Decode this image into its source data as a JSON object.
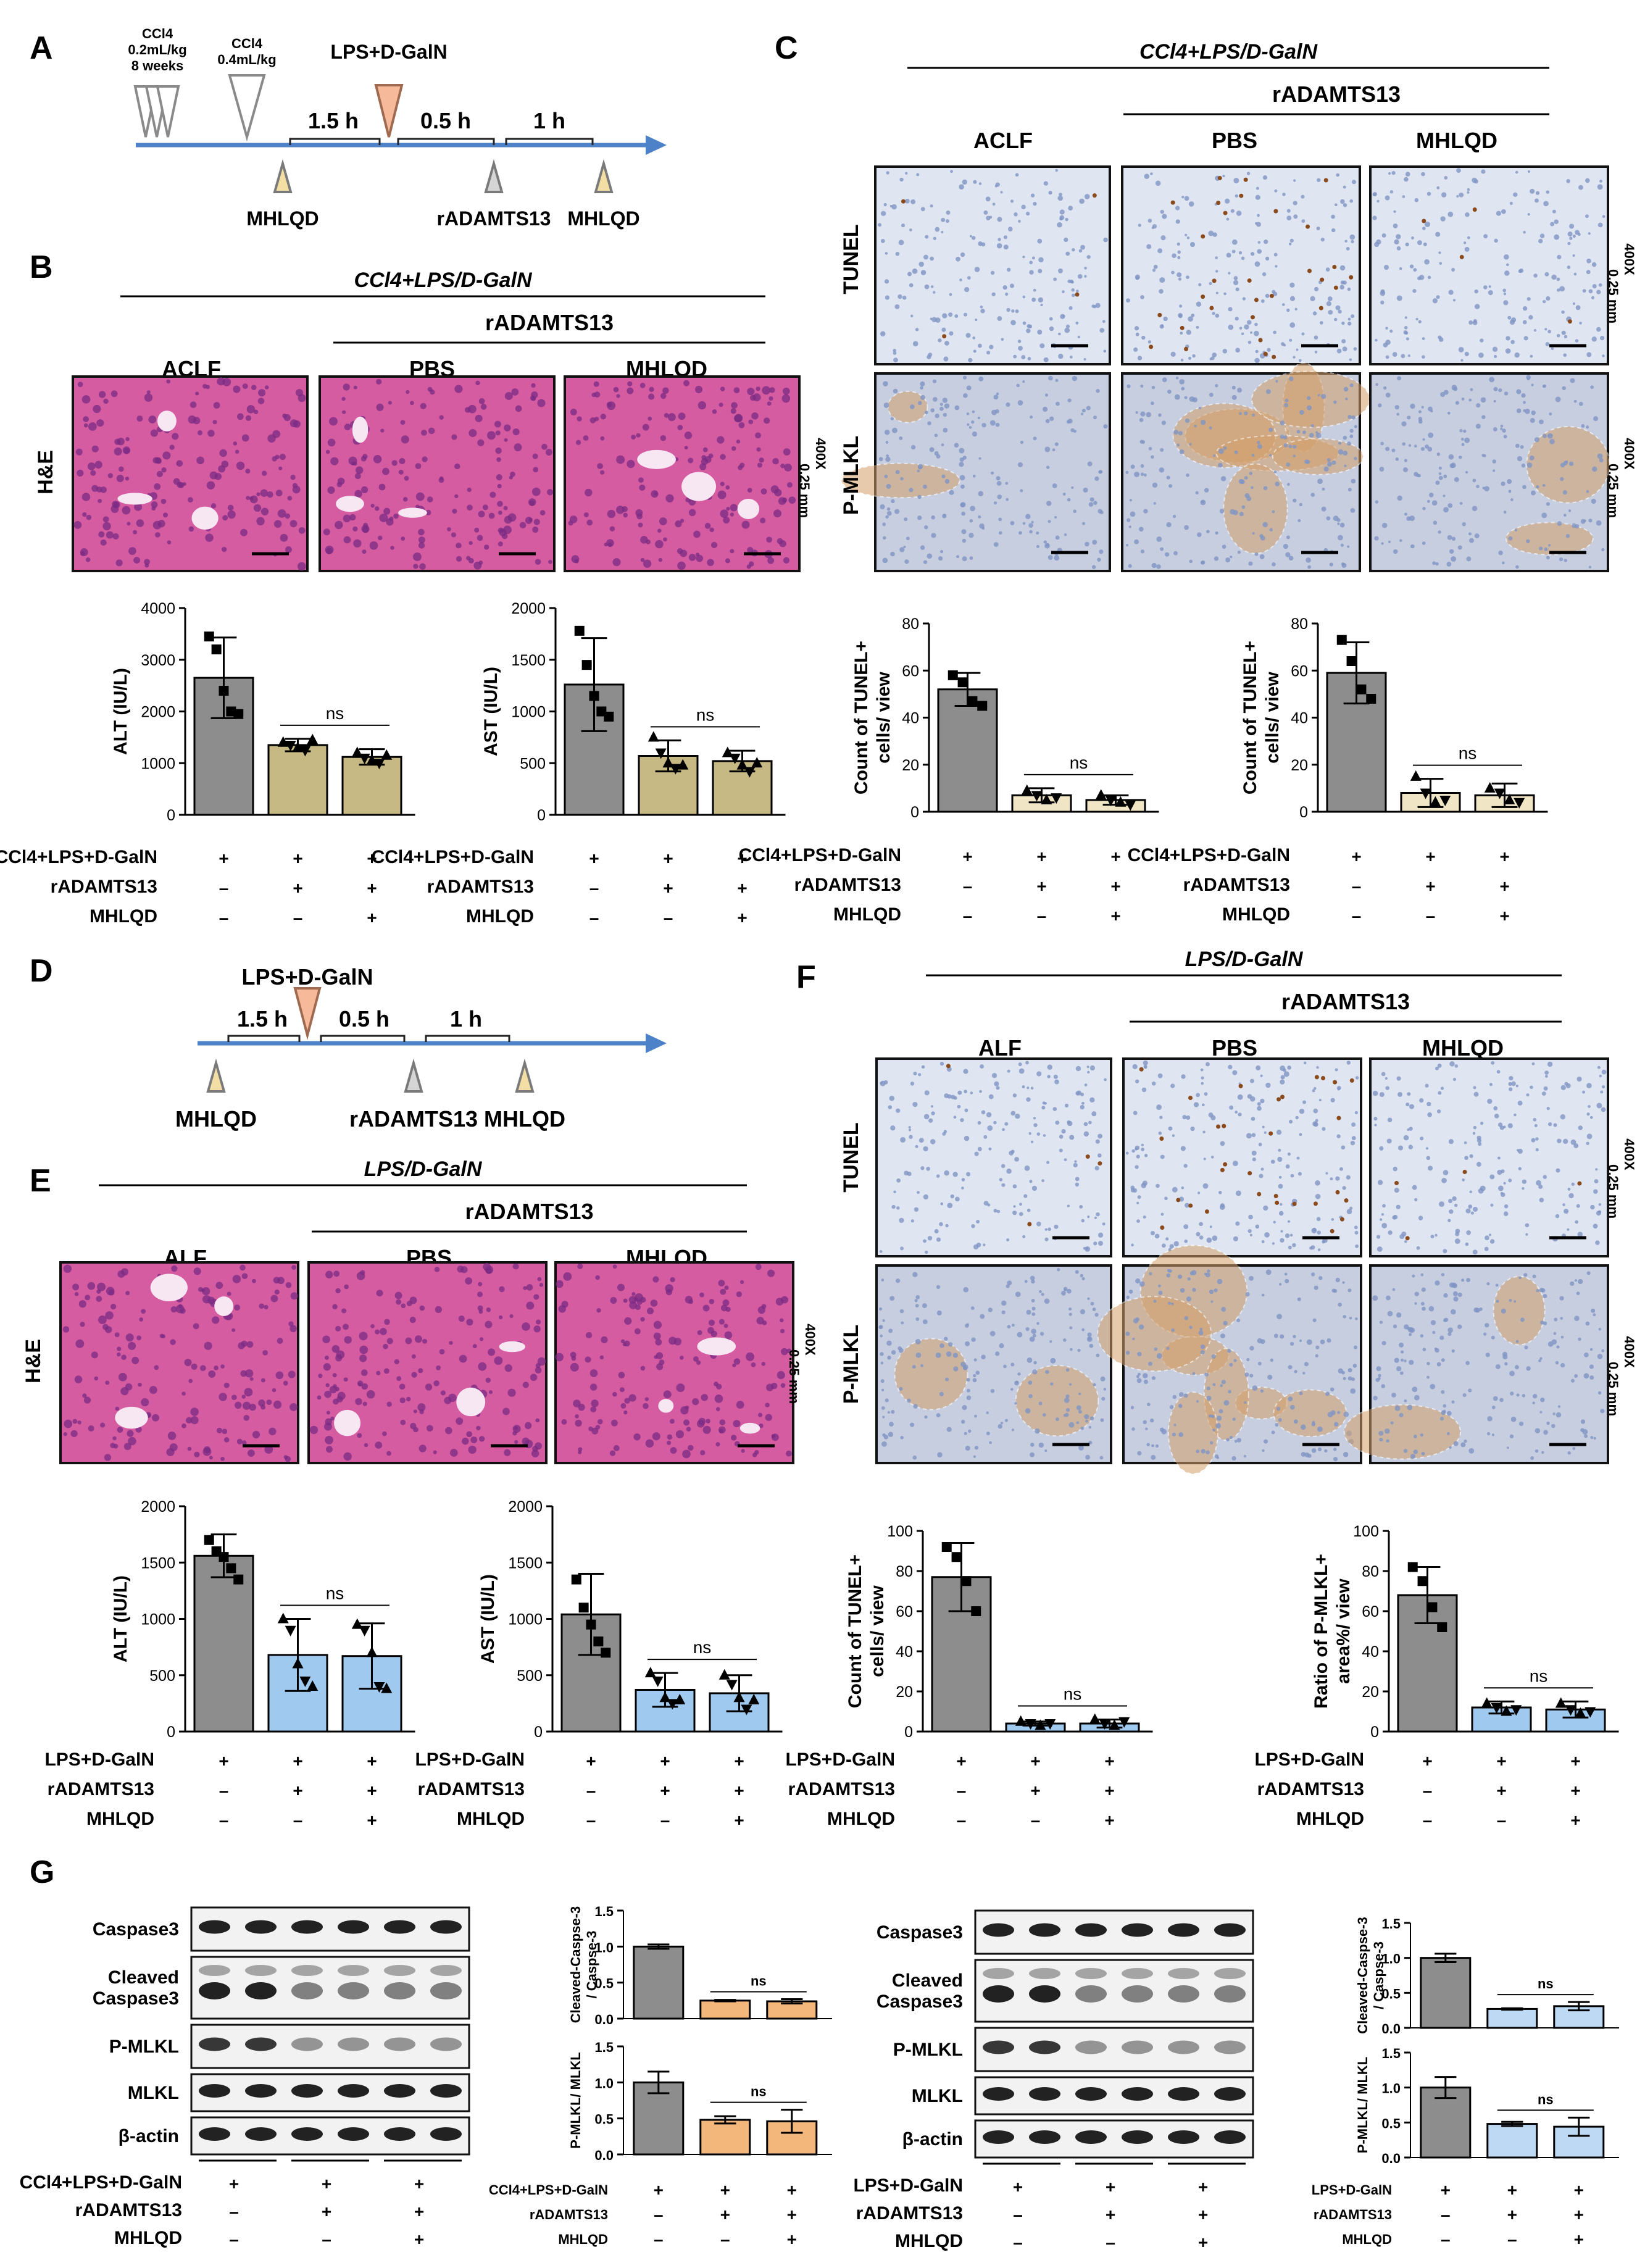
{
  "panels": [
    "A",
    "B",
    "C",
    "D",
    "E",
    "F",
    "G"
  ],
  "timeline_A": {
    "top": [
      "CCl4",
      "0.2mL/kg",
      "8 weeks",
      "CCl4",
      "0.4mL/kg",
      "LPS+D-GalN"
    ],
    "intervals": [
      "1.5 h",
      "0.5 h",
      "1 h"
    ],
    "bottom": [
      "MHLQD",
      "rADAMTS13",
      "MHLQD"
    ]
  },
  "timeline_D": {
    "top": [
      "LPS+D-GalN"
    ],
    "intervals": [
      "1.5 h",
      "0.5 h",
      "1 h"
    ],
    "bottom": [
      "MHLQD",
      "rADAMTS13",
      "MHLQD"
    ]
  },
  "model_labels": {
    "chronic": "CCl4+LPS/D-GalN",
    "acute": "LPS/D-GalN"
  },
  "treatment": "rADAMTS13",
  "groups_chronic": [
    "ACLF",
    "PBS",
    "MHLQD"
  ],
  "groups_acute": [
    "ALF",
    "PBS",
    "MHLQD"
  ],
  "stains": {
    "he": "H&E",
    "tunel": "TUNEL",
    "pmlkl": "P-MLKL"
  },
  "scale_note": [
    "400X",
    "0.25 mm"
  ],
  "conditions_chronic": {
    "labels": [
      "CCl4+LPS+D-GalN",
      "rADAMTS13",
      "MHLQD"
    ],
    "signs": [
      [
        "+",
        "+",
        "+"
      ],
      [
        "–",
        "+",
        "+"
      ],
      [
        "–",
        "–",
        "+"
      ]
    ]
  },
  "conditions_acute": {
    "labels": [
      "LPS+D-GalN",
      "rADAMTS13",
      "MHLQD"
    ],
    "signs": [
      [
        "+",
        "+",
        "+"
      ],
      [
        "–",
        "+",
        "+"
      ],
      [
        "–",
        "–",
        "+"
      ]
    ]
  },
  "ns": "ns",
  "colors": {
    "gray": "#8d8d8d",
    "olive": "#c6b983",
    "beige": "#f0e6c6",
    "blue": "#9fc9ef",
    "orange": "#f3b77c",
    "lightblue": "#bed9f3",
    "axis": "#000000",
    "timeline": "#4d82c9"
  },
  "blot": {
    "left_labels": [
      "Caspase3",
      "Cleaved\nCaspase3",
      "P-MLKL",
      "MLKL",
      "β-actin"
    ],
    "right_labels": [
      "Caspase3",
      "Cleaved\nCaspase3",
      "P-MLKL",
      "MLKL",
      "β-actin"
    ]
  },
  "chart_data": [
    {
      "id": "B-ALT",
      "type": "bar",
      "ylabel": "ALT (IU/L)",
      "ylim": [
        0,
        4000
      ],
      "yticks": [
        0,
        1000,
        2000,
        3000,
        4000
      ],
      "values": [
        2650,
        1350,
        1120
      ],
      "errors": [
        780,
        120,
        150
      ],
      "colors": [
        "gray",
        "olive",
        "olive"
      ],
      "points": [
        [
          3450,
          3200,
          2400,
          2000,
          1950
        ],
        [
          1400,
          1350,
          1300,
          1250,
          1450
        ],
        [
          1200,
          1100,
          1050,
          1000,
          1150
        ]
      ],
      "marker": "square"
    },
    {
      "id": "B-AST",
      "type": "bar",
      "ylabel": "AST (IU/L)",
      "ylim": [
        0,
        2000
      ],
      "yticks": [
        0,
        500,
        1000,
        1500,
        2000
      ],
      "values": [
        1260,
        570,
        520
      ],
      "errors": [
        450,
        150,
        100
      ],
      "colors": [
        "gray",
        "olive",
        "olive"
      ],
      "points": [
        [
          1780,
          1450,
          1150,
          1000,
          950
        ],
        [
          750,
          600,
          500,
          450,
          480
        ],
        [
          600,
          550,
          480,
          420,
          500
        ]
      ],
      "marker": "square"
    },
    {
      "id": "C-TUNEL",
      "type": "bar",
      "ylabel": "Count of TUNEL+\ncells/ view",
      "ylim": [
        0,
        80
      ],
      "yticks": [
        0,
        20,
        40,
        60,
        80
      ],
      "values": [
        52,
        7,
        5
      ],
      "errors": [
        7,
        3,
        2
      ],
      "colors": [
        "gray",
        "beige",
        "beige"
      ],
      "points": [
        [
          58,
          55,
          47,
          45
        ],
        [
          9,
          7,
          5,
          6
        ],
        [
          7,
          5,
          4,
          3
        ]
      ],
      "marker": "square"
    },
    {
      "id": "C-PMLKL",
      "type": "bar",
      "ylabel": "Count of TUNEL+\ncells/ view",
      "ylim": [
        0,
        80
      ],
      "yticks": [
        0,
        20,
        40,
        60,
        80
      ],
      "values": [
        59,
        8,
        7
      ],
      "errors": [
        13,
        6,
        5
      ],
      "colors": [
        "gray",
        "beige",
        "beige"
      ],
      "points": [
        [
          73,
          64,
          52,
          48
        ],
        [
          15,
          8,
          4,
          5
        ],
        [
          10,
          8,
          5,
          4
        ]
      ],
      "marker": "square"
    },
    {
      "id": "E-ALT",
      "type": "bar",
      "ylabel": "ALT (IU/L)",
      "ylim": [
        0,
        2000
      ],
      "yticks": [
        0,
        500,
        1000,
        1500,
        2000
      ],
      "values": [
        1560,
        680,
        670
      ],
      "errors": [
        190,
        320,
        290
      ],
      "colors": [
        "gray",
        "blue",
        "blue"
      ],
      "points": [
        [
          1700,
          1600,
          1550,
          1450,
          1350
        ],
        [
          1000,
          900,
          600,
          450,
          400
        ],
        [
          950,
          900,
          700,
          400,
          380
        ]
      ],
      "marker": "square"
    },
    {
      "id": "E-AST",
      "type": "bar",
      "ylabel": "AST (IU/L)",
      "ylim": [
        0,
        2000
      ],
      "yticks": [
        0,
        500,
        1000,
        1500,
        2000
      ],
      "values": [
        1040,
        370,
        340
      ],
      "errors": [
        360,
        150,
        160
      ],
      "colors": [
        "gray",
        "blue",
        "blue"
      ],
      "points": [
        [
          1350,
          1100,
          950,
          800,
          700
        ],
        [
          520,
          450,
          300,
          250,
          280
        ],
        [
          500,
          420,
          300,
          200,
          280
        ]
      ],
      "marker": "square"
    },
    {
      "id": "F-TUNEL",
      "type": "bar",
      "ylabel": "Count of TUNEL+\ncells/ view",
      "ylim": [
        0,
        100
      ],
      "yticks": [
        0,
        20,
        40,
        60,
        80,
        100
      ],
      "values": [
        77,
        4,
        4
      ],
      "errors": [
        17,
        1,
        2
      ],
      "colors": [
        "gray",
        "blue",
        "blue"
      ],
      "points": [
        [
          92,
          87,
          75,
          60
        ],
        [
          5,
          4,
          3,
          4
        ],
        [
          6,
          4,
          3,
          5
        ]
      ],
      "marker": "square"
    },
    {
      "id": "F-PMLKL",
      "type": "bar",
      "ylabel": "Ratio of P-MLKL+\narea%/ view",
      "ylim": [
        0,
        100
      ],
      "yticks": [
        0,
        20,
        40,
        60,
        80,
        100
      ],
      "values": [
        68,
        12,
        11
      ],
      "errors": [
        14,
        3,
        4
      ],
      "colors": [
        "gray",
        "blue",
        "blue"
      ],
      "points": [
        [
          82,
          75,
          62,
          52
        ],
        [
          14,
          12,
          10,
          11
        ],
        [
          14,
          11,
          9,
          10
        ]
      ],
      "marker": "square"
    },
    {
      "id": "G1-cc3",
      "type": "bar",
      "ylabel": "Cleaved-Caspse-3\n/ Caspse-3",
      "ylim": [
        0,
        1.5
      ],
      "yticks": [
        "0.0",
        "0.5",
        "1.0",
        "1.5"
      ],
      "values": [
        1.0,
        0.25,
        0.24
      ],
      "errors": [
        0.03,
        0.01,
        0.03
      ],
      "colors": [
        "gray",
        "orange",
        "orange"
      ]
    },
    {
      "id": "G1-pmlkl",
      "type": "bar",
      "ylabel": "P-MLKL/ MLKL",
      "ylim": [
        0,
        1.5
      ],
      "yticks": [
        "0.0",
        "0.5",
        "1.0",
        "1.5"
      ],
      "values": [
        1.0,
        0.48,
        0.46
      ],
      "errors": [
        0.15,
        0.05,
        0.16
      ],
      "colors": [
        "gray",
        "orange",
        "orange"
      ]
    },
    {
      "id": "G2-cc3",
      "type": "bar",
      "ylabel": "Cleaved-Caspse-3\n/ Caspse-3",
      "ylim": [
        0,
        1.5
      ],
      "yticks": [
        "0.0",
        "0.5",
        "1.0",
        "1.5"
      ],
      "values": [
        1.0,
        0.27,
        0.31
      ],
      "errors": [
        0.06,
        0.01,
        0.06
      ],
      "colors": [
        "gray",
        "lightblue",
        "lightblue"
      ]
    },
    {
      "id": "G2-pmlkl",
      "type": "bar",
      "ylabel": "P-MLKL/ MLKL",
      "ylim": [
        0,
        1.5
      ],
      "yticks": [
        "0.0",
        "0.5",
        "1.0",
        "1.5"
      ],
      "values": [
        1.0,
        0.48,
        0.44
      ],
      "errors": [
        0.15,
        0.03,
        0.13
      ],
      "colors": [
        "gray",
        "lightblue",
        "lightblue"
      ]
    }
  ]
}
